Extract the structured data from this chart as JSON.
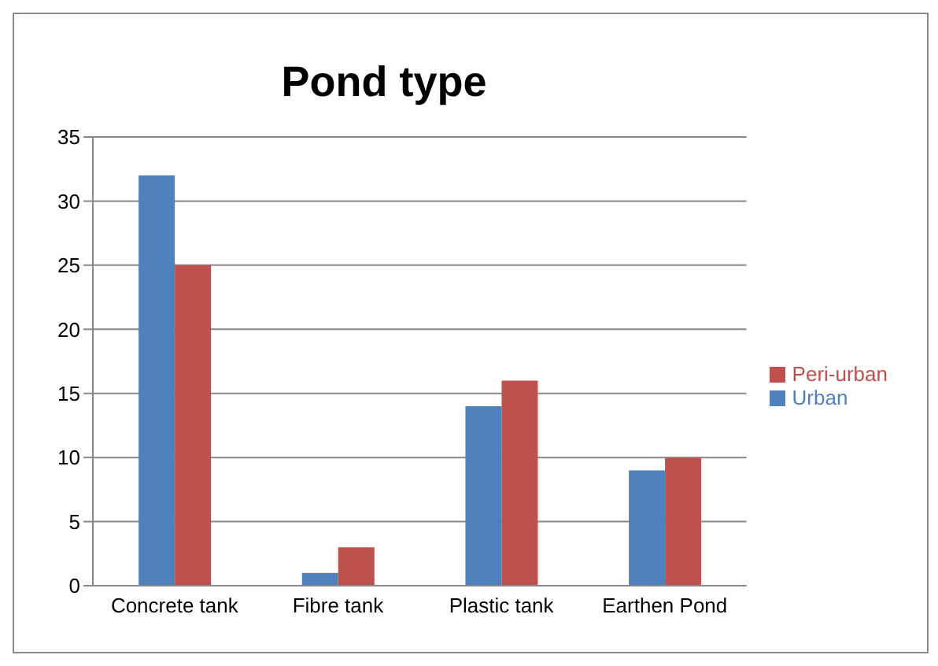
{
  "chart_data": {
    "type": "bar",
    "title": "Pond type",
    "categories": [
      "Concrete tank",
      "Fibre tank",
      "Plastic tank",
      "Earthen Pond"
    ],
    "series": [
      {
        "name": "Urban",
        "color": "#4f81bd",
        "values": [
          32,
          1,
          14,
          9
        ]
      },
      {
        "name": "Peri-urban",
        "color": "#c0504d",
        "values": [
          25,
          3,
          16,
          10
        ]
      }
    ],
    "ylim": [
      0,
      35
    ],
    "yticks": [
      0,
      5,
      10,
      15,
      20,
      25,
      30,
      35
    ],
    "grid": "y",
    "legend": "right"
  }
}
